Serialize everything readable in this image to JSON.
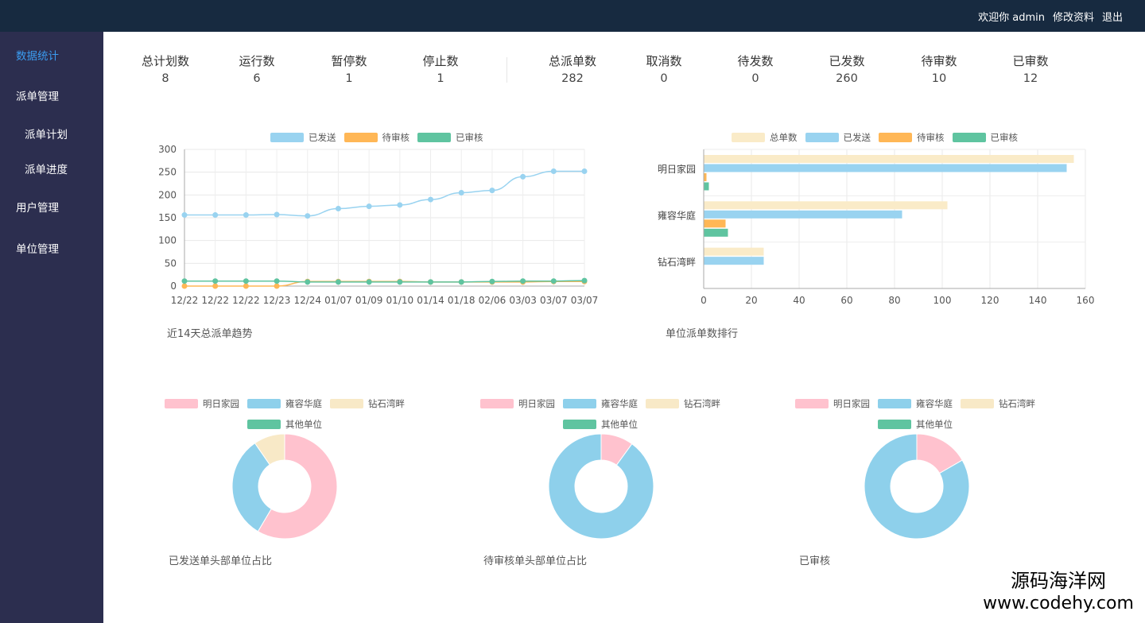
{
  "header": {
    "welcome": "欢迎你 admin",
    "edit_profile": "修改资料",
    "logout": "退出"
  },
  "sidebar": {
    "items": [
      {
        "label": "数据统计",
        "active": true
      },
      {
        "label": "派单管理"
      },
      {
        "label": "派单计划",
        "sub": true
      },
      {
        "label": "派单进度",
        "sub": true
      },
      {
        "label": "用户管理"
      },
      {
        "label": "单位管理"
      }
    ]
  },
  "stats": [
    {
      "label": "总计划数",
      "value": "8"
    },
    {
      "label": "运行数",
      "value": "6"
    },
    {
      "label": "暂停数",
      "value": "1"
    },
    {
      "label": "停止数",
      "value": "1"
    },
    {
      "label": "总派单数",
      "value": "282"
    },
    {
      "label": "取消数",
      "value": "0"
    },
    {
      "label": "待发数",
      "value": "0"
    },
    {
      "label": "已发数",
      "value": "260"
    },
    {
      "label": "待审数",
      "value": "10"
    },
    {
      "label": "已审数",
      "value": "12"
    }
  ],
  "colors": {
    "sent": "#99d3f0",
    "pending": "#ffb756",
    "approved": "#5fc4a0",
    "total": "#faebc8",
    "pink": "#ffc2ce",
    "blue": "#8ed0eb",
    "cream": "#f8e9c7",
    "green": "#5fc4a0"
  },
  "chart_data": [
    {
      "type": "line",
      "title": "近14天总派单趋势",
      "categories": [
        "12/22",
        "12/22",
        "12/22",
        "12/23",
        "12/24",
        "01/07",
        "01/09",
        "01/10",
        "01/14",
        "01/18",
        "02/06",
        "03/03",
        "03/07",
        "03/07"
      ],
      "series": [
        {
          "name": "已发送",
          "values": [
            156,
            156,
            156,
            157,
            154,
            170,
            175,
            178,
            190,
            205,
            210,
            240,
            252,
            252
          ]
        },
        {
          "name": "待审核",
          "values": [
            0,
            0,
            0,
            0,
            10,
            10,
            10,
            10,
            9,
            9,
            9,
            9,
            10,
            10
          ]
        },
        {
          "name": "已审核",
          "values": [
            11,
            11,
            11,
            11,
            9,
            9,
            9,
            9,
            9,
            9,
            10,
            11,
            11,
            12
          ]
        }
      ],
      "ylim": [
        0,
        300
      ],
      "yticks": [
        0,
        50,
        100,
        150,
        200,
        250,
        300
      ],
      "grid": true,
      "legend": "top-center"
    },
    {
      "type": "bar",
      "orientation": "horizontal",
      "title": "单位派单数排行",
      "categories": [
        "明日家园",
        "雍容华庭",
        "钻石湾畔"
      ],
      "series": [
        {
          "name": "总单数",
          "values": [
            155,
            102,
            25
          ]
        },
        {
          "name": "已发送",
          "values": [
            152,
            83,
            25
          ]
        },
        {
          "name": "待审核",
          "values": [
            1,
            9,
            0
          ]
        },
        {
          "name": "已审核",
          "values": [
            2,
            10,
            0
          ]
        }
      ],
      "xlim": [
        0,
        160
      ],
      "xticks": [
        0,
        20,
        40,
        60,
        80,
        100,
        120,
        140,
        160
      ],
      "grid": true,
      "legend": "top-center"
    },
    {
      "type": "pie",
      "title": "已发送单头部单位占比",
      "labels": [
        "明日家园",
        "雍容华庭",
        "钻石湾畔",
        "其他单位"
      ],
      "values": [
        58.5,
        31.9,
        9.6,
        0
      ]
    },
    {
      "type": "pie",
      "title": "待审核单头部单位占比",
      "labels": [
        "明日家园",
        "雍容华庭",
        "钻石湾畔",
        "其他单位"
      ],
      "values": [
        10,
        90,
        0,
        0
      ]
    },
    {
      "type": "pie",
      "title": "已审核",
      "labels": [
        "明日家园",
        "雍容华庭",
        "钻石湾畔",
        "其他单位"
      ],
      "values": [
        16.7,
        83.3,
        0,
        0
      ]
    }
  ],
  "watermark": {
    "line1": "源码海洋网",
    "line2": "www.codehy.com"
  }
}
